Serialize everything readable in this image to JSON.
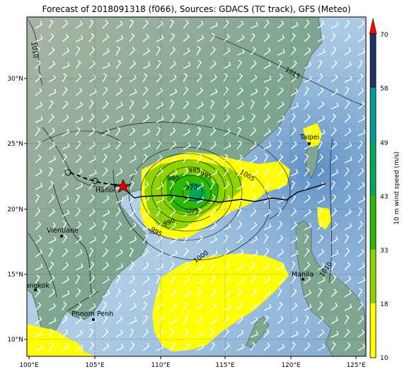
{
  "title": "Forecast of 2018091318 (f066), Sources: GDACS (TC track), GFS (Meteo)",
  "lon_ticks": [
    "100°E",
    "105°E",
    "110°E",
    "115°E",
    "120°E",
    "125°E"
  ],
  "lat_ticks": [
    "30°N",
    "25°N",
    "20°N",
    "15°N",
    "10°N"
  ],
  "cities": [
    {
      "name": "Taipei",
      "lon": 121.5,
      "lat": 25.0
    },
    {
      "name": "Hanoi",
      "lon": 105.8,
      "lat": 21.0
    },
    {
      "name": "Vientiane",
      "lon": 102.6,
      "lat": 17.97
    },
    {
      "name": "Bangkok",
      "lon": 100.5,
      "lat": 13.75
    },
    {
      "name": "Phnom Penh",
      "lon": 104.9,
      "lat": 11.55
    },
    {
      "name": "Manila",
      "lon": 121.0,
      "lat": 14.6
    }
  ],
  "isobar_labels": [
    "1010",
    "1015",
    "1005",
    "1000",
    "995",
    "990",
    "985",
    "980",
    "975",
    "970",
    "1010",
    "995"
  ],
  "colorbar": {
    "label": "10 m wind speed (m/s)",
    "ticks": [
      "70",
      "58",
      "49",
      "43",
      "33",
      "18",
      "10"
    ],
    "colors": [
      "#ffff00",
      "#8fd400",
      "#2eb800",
      "#00a85a",
      "#009999",
      "#2a6699",
      "#1d3466"
    ]
  },
  "track": {
    "forecast_position": {
      "lon": 107.1,
      "lat": 21.8
    },
    "marker": "red-star"
  }
}
